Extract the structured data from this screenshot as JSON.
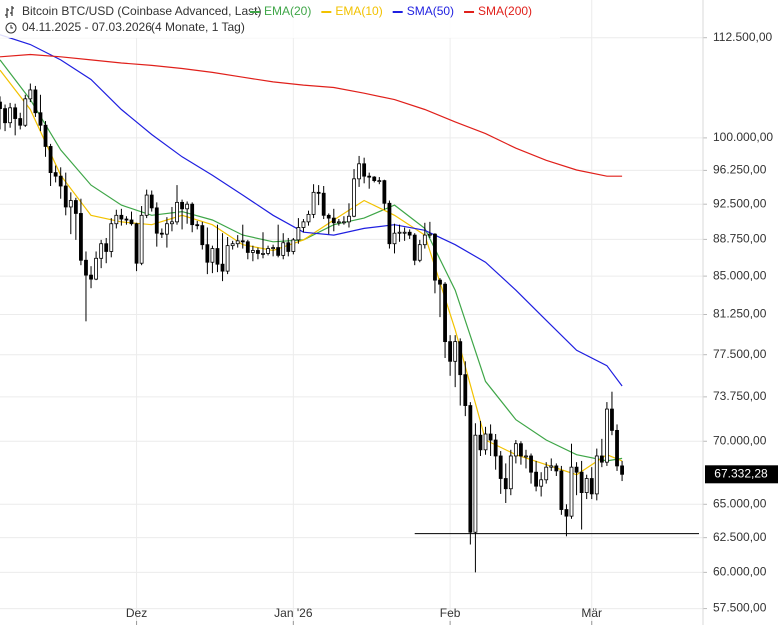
{
  "chart_data": {
    "type": "candlestick",
    "title": "Bitcoin BTC/USD (Coinbase Advanced, Last)",
    "date_range": "04.11.2025 - 07.03.2026",
    "span": "(4 Monate, 1 Tag)",
    "log_scale": true,
    "grid": true,
    "up_color": "#ffffff",
    "down_color": "#000000",
    "x": [
      "2025-11-04",
      "2025-11-05",
      "2025-11-06",
      "2025-11-07",
      "2025-11-08",
      "2025-11-09",
      "2025-11-10",
      "2025-11-11",
      "2025-11-12",
      "2025-11-13",
      "2025-11-14",
      "2025-11-15",
      "2025-11-16",
      "2025-11-17",
      "2025-11-18",
      "2025-11-19",
      "2025-11-20",
      "2025-11-21",
      "2025-11-22",
      "2025-11-23",
      "2025-11-24",
      "2025-11-25",
      "2025-11-26",
      "2025-11-27",
      "2025-11-28",
      "2025-11-29",
      "2025-11-30",
      "2025-12-01",
      "2025-12-02",
      "2025-12-03",
      "2025-12-04",
      "2025-12-05",
      "2025-12-06",
      "2025-12-07",
      "2025-12-08",
      "2025-12-09",
      "2025-12-10",
      "2025-12-11",
      "2025-12-12",
      "2025-12-13",
      "2025-12-14",
      "2025-12-15",
      "2025-12-16",
      "2025-12-17",
      "2025-12-18",
      "2025-12-19",
      "2025-12-20",
      "2025-12-21",
      "2025-12-22",
      "2025-12-23",
      "2025-12-24",
      "2025-12-25",
      "2025-12-26",
      "2025-12-27",
      "2025-12-28",
      "2025-12-29",
      "2025-12-30",
      "2025-12-31",
      "2026-01-01",
      "2026-01-02",
      "2026-01-03",
      "2026-01-04",
      "2026-01-05",
      "2026-01-06",
      "2026-01-07",
      "2026-01-08",
      "2026-01-09",
      "2026-01-10",
      "2026-01-11",
      "2026-01-12",
      "2026-01-13",
      "2026-01-14",
      "2026-01-15",
      "2026-01-16",
      "2026-01-17",
      "2026-01-18",
      "2026-01-19",
      "2026-01-20",
      "2026-01-21",
      "2026-01-22",
      "2026-01-23",
      "2026-01-24",
      "2026-01-25",
      "2026-01-26",
      "2026-01-27",
      "2026-01-28",
      "2026-01-29",
      "2026-01-30",
      "2026-01-31",
      "2026-02-01",
      "2026-02-02",
      "2026-02-03",
      "2026-02-04",
      "2026-02-05",
      "2026-02-06",
      "2026-02-07",
      "2026-02-08",
      "2026-02-09",
      "2026-02-10",
      "2026-02-11",
      "2026-02-12",
      "2026-02-13",
      "2026-02-14",
      "2026-02-15",
      "2026-02-16",
      "2026-02-17",
      "2026-02-18",
      "2026-02-19",
      "2026-02-20",
      "2026-02-21",
      "2026-02-22",
      "2026-02-23",
      "2026-02-24",
      "2026-02-25",
      "2026-02-26",
      "2026-02-27",
      "2026-02-28",
      "2026-03-01",
      "2026-03-02",
      "2026-03-03",
      "2026-03-04",
      "2026-03-05",
      "2026-03-06",
      "2026-03-07"
    ],
    "open": [
      104300,
      103500,
      101800,
      103600,
      102300,
      101500,
      104700,
      105800,
      103000,
      101500,
      99000,
      96000,
      95600,
      94500,
      92200,
      92900,
      91500,
      86600,
      85100,
      84700,
      86800,
      88300,
      87500,
      90400,
      91300,
      90900,
      90800,
      90400,
      86300,
      91300,
      93500,
      92100,
      89400,
      89300,
      90400,
      90600,
      92700,
      92000,
      92500,
      90300,
      90200,
      88200,
      86400,
      87800,
      86200,
      85500,
      88100,
      88300,
      88600,
      88500,
      87400,
      87600,
      87300,
      87300,
      87800,
      87900,
      87100,
      88400,
      87500,
      88700,
      90000,
      90600,
      91400,
      93800,
      93700,
      91300,
      91000,
      90500,
      90600,
      90600,
      91200,
      95300,
      97000,
      95600,
      95500,
      95100,
      95100,
      92600,
      88300,
      89400,
      89500,
      89500,
      89200,
      86600,
      88200,
      89200,
      89300,
      84600,
      84200,
      78700,
      76900,
      78700,
      75700,
      73000,
      62900,
      70500,
      69300,
      70600,
      70100,
      68800,
      67000,
      66200,
      68800,
      69800,
      68800,
      68800,
      67500,
      66400,
      66900,
      67900,
      68000,
      67600,
      64600,
      64100,
      67900,
      67500,
      65900,
      67000,
      65800,
      68800,
      68300,
      72700,
      70900,
      68000
    ],
    "high": [
      105000,
      104000,
      104200,
      104100,
      103000,
      105200,
      106600,
      106300,
      105200,
      102000,
      99300,
      96800,
      96600,
      96000,
      93800,
      93200,
      93100,
      87500,
      86000,
      87500,
      88700,
      88900,
      91000,
      91900,
      92000,
      91200,
      91700,
      90500,
      92300,
      94100,
      94000,
      92700,
      89900,
      91100,
      92200,
      94600,
      93000,
      92800,
      92700,
      90700,
      90600,
      90000,
      88100,
      90300,
      89400,
      89000,
      88600,
      89200,
      90300,
      88700,
      88100,
      87900,
      89500,
      88100,
      88200,
      90300,
      89400,
      88900,
      88900,
      91000,
      90900,
      91800,
      94700,
      94600,
      94500,
      91500,
      92000,
      90900,
      91200,
      92600,
      96400,
      97900,
      97700,
      96000,
      95600,
      95500,
      95200,
      92900,
      90400,
      90300,
      90000,
      89800,
      89400,
      88700,
      90500,
      90600,
      89400,
      84800,
      84400,
      79300,
      79300,
      79000,
      76900,
      73300,
      71500,
      71700,
      71200,
      71400,
      70600,
      69200,
      68200,
      69300,
      70100,
      70000,
      69300,
      69000,
      68400,
      67500,
      68300,
      68600,
      68200,
      68000,
      65000,
      69800,
      68300,
      68400,
      67300,
      67900,
      69400,
      70200,
      73300,
      74200,
      71400,
      68400
    ],
    "low": [
      101000,
      100800,
      101200,
      100300,
      101000,
      101300,
      104300,
      102500,
      100800,
      97800,
      94500,
      94900,
      93100,
      91300,
      89300,
      88700,
      86100,
      80600,
      83800,
      84600,
      85800,
      86300,
      86900,
      89900,
      90200,
      90300,
      90200,
      85500,
      86100,
      91000,
      91700,
      88000,
      88900,
      87900,
      89600,
      90300,
      89800,
      90400,
      89500,
      89800,
      87700,
      85200,
      85300,
      85400,
      84500,
      85200,
      87700,
      87900,
      87800,
      86700,
      86500,
      86700,
      86800,
      87100,
      87000,
      86900,
      86700,
      87000,
      87200,
      88300,
      89500,
      90200,
      91000,
      92400,
      90900,
      89300,
      89600,
      90200,
      90300,
      90000,
      91100,
      94400,
      94800,
      94200,
      94900,
      94700,
      91900,
      87800,
      87300,
      88500,
      88600,
      88800,
      86100,
      86400,
      87800,
      88900,
      83300,
      81000,
      77200,
      75600,
      74600,
      73000,
      72100,
      62000,
      60000,
      68800,
      68900,
      68800,
      67700,
      65800,
      65100,
      65700,
      68200,
      68100,
      67800,
      66600,
      66000,
      65600,
      66600,
      67600,
      67200,
      64200,
      62600,
      63900,
      65700,
      63100,
      65400,
      65400,
      65300,
      67900,
      68000,
      70500,
      67600,
      66800
    ],
    "close": [
      103500,
      101800,
      103600,
      102300,
      101500,
      104700,
      105800,
      103000,
      101500,
      99000,
      96000,
      95600,
      94500,
      92200,
      92900,
      91500,
      86600,
      85100,
      84700,
      86800,
      88300,
      87500,
      90400,
      91300,
      90900,
      90800,
      90400,
      86300,
      91300,
      93500,
      92100,
      89400,
      89300,
      90400,
      90600,
      92700,
      92000,
      92500,
      90300,
      90200,
      88200,
      86400,
      87800,
      86200,
      85500,
      88100,
      88300,
      88600,
      88500,
      87400,
      87600,
      87300,
      87300,
      87800,
      87900,
      87100,
      88400,
      87500,
      88700,
      90000,
      90600,
      91400,
      93800,
      93700,
      91300,
      91000,
      90500,
      90600,
      90600,
      91200,
      95300,
      97000,
      95600,
      95500,
      95100,
      95100,
      92600,
      88300,
      89400,
      89500,
      89500,
      89200,
      86600,
      88200,
      89200,
      89300,
      84600,
      84200,
      78700,
      76900,
      78700,
      75700,
      73000,
      62900,
      70500,
      69300,
      70600,
      70100,
      68800,
      67000,
      66200,
      68800,
      69800,
      68800,
      68800,
      67500,
      66400,
      66900,
      67900,
      68000,
      67600,
      64600,
      64100,
      67900,
      67500,
      65900,
      67000,
      65800,
      68800,
      68300,
      72700,
      70900,
      68000,
      67332.28
    ],
    "line_x": [
      "2025-11-04",
      "2025-11-10",
      "2025-11-16",
      "2025-11-22",
      "2025-11-28",
      "2025-12-04",
      "2025-12-10",
      "2025-12-16",
      "2025-12-22",
      "2025-12-28",
      "2026-01-03",
      "2026-01-09",
      "2026-01-15",
      "2026-01-21",
      "2026-01-27",
      "2026-02-02",
      "2026-02-08",
      "2026-02-14",
      "2026-02-20",
      "2026-02-26",
      "2026-03-04",
      "2026-03-07"
    ],
    "lines": [
      {
        "name": "EMA(20)",
        "color": "#3fa648",
        "values": [
          109600,
          104600,
          98600,
          94600,
          92400,
          91300,
          91700,
          90800,
          89200,
          88500,
          88700,
          90300,
          91000,
          92400,
          89900,
          83600,
          75100,
          71800,
          70100,
          68900,
          68400,
          68600
        ]
      },
      {
        "name": "EMA(10)",
        "color": "#f2c200",
        "values": [
          108300,
          103400,
          95700,
          91300,
          90600,
          90300,
          91300,
          90300,
          88200,
          87600,
          88700,
          90800,
          92900,
          91300,
          89200,
          79800,
          70100,
          68900,
          68100,
          67300,
          68900,
          68400
        ]
      },
      {
        "name": "SMA(50)",
        "color": "#1f1fe0",
        "values": [
          112900,
          111600,
          109600,
          107100,
          103400,
          100400,
          97800,
          95700,
          93500,
          91300,
          89500,
          89200,
          89900,
          90300,
          89700,
          88200,
          86400,
          83600,
          80700,
          77900,
          76500,
          74700
        ]
      },
      {
        "name": "SMA(200)",
        "color": "#e0201b",
        "values": [
          110000,
          110300,
          110000,
          109600,
          109200,
          108900,
          108500,
          108000,
          107400,
          106800,
          106400,
          106100,
          105400,
          104600,
          103400,
          101900,
          100500,
          98800,
          97400,
          96300,
          95600,
          95600
        ]
      }
    ],
    "hline": {
      "value": 62800,
      "from": "2026-01-25"
    },
    "last_price": {
      "value": 67332.28,
      "label": "67.332,28"
    },
    "xlim": [
      "2025-11-04",
      "2026-03-23"
    ],
    "xticks": [
      {
        "value": "2025-12-01",
        "label": "Dez"
      },
      {
        "value": "2026-01-01",
        "label": "Jan '26"
      },
      {
        "value": "2026-02-01",
        "label": "Feb"
      },
      {
        "value": "2026-03-01",
        "label": "Mär"
      }
    ],
    "ylim": [
      117600,
      56400
    ],
    "yticks": [
      {
        "value": 112500,
        "label": "112.500,00"
      },
      {
        "value": 100000,
        "label": "100.000,00"
      },
      {
        "value": 96250,
        "label": "96.250,00"
      },
      {
        "value": 92500,
        "label": "92.500,00"
      },
      {
        "value": 88750,
        "label": "88.750,00"
      },
      {
        "value": 85000,
        "label": "85.000,00"
      },
      {
        "value": 81250,
        "label": "81.250,00"
      },
      {
        "value": 77500,
        "label": "77.500,00"
      },
      {
        "value": 73750,
        "label": "73.750,00"
      },
      {
        "value": 70000,
        "label": "70.000,00"
      },
      {
        "value": 65000,
        "label": "65.000,00"
      },
      {
        "value": 62500,
        "label": "62.500,00"
      },
      {
        "value": 60000,
        "label": "60.000,00"
      },
      {
        "value": 57500,
        "label": "57.500,00"
      }
    ]
  }
}
